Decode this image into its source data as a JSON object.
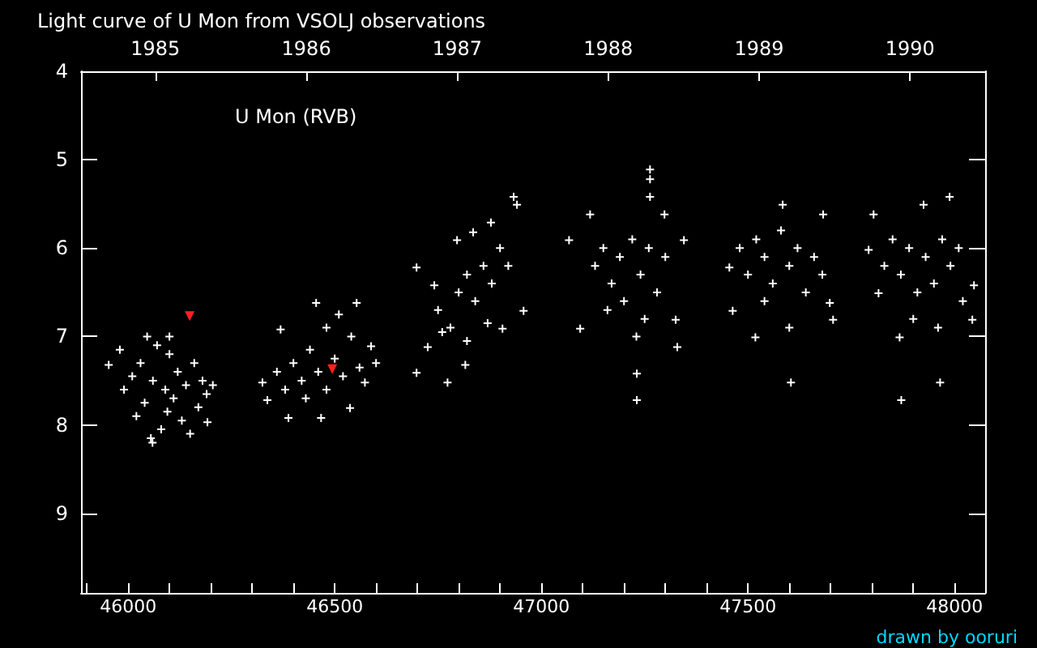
{
  "chart_data": {
    "type": "scatter",
    "title": "Light curve of U Mon from VSOLJ observations",
    "annotations": [
      "U Mon (RVB)",
      "drawn by ooruri"
    ],
    "xlim": [
      45886,
      48074
    ],
    "xticks": [
      {
        "value": 45900,
        "label": null
      },
      46000,
      {
        "value": 46100,
        "label": null
      },
      {
        "value": 46200,
        "label": null
      },
      {
        "value": 46300,
        "label": null
      },
      {
        "value": 46400,
        "label": null
      },
      46500,
      {
        "value": 46600,
        "label": null
      },
      {
        "value": 46700,
        "label": null
      },
      {
        "value": 46800,
        "label": null
      },
      {
        "value": 46900,
        "label": null
      },
      47000,
      {
        "value": 47100,
        "label": null
      },
      {
        "value": 47200,
        "label": null
      },
      {
        "value": 47300,
        "label": null
      },
      {
        "value": 47400,
        "label": null
      },
      47500,
      {
        "value": 47600,
        "label": null
      },
      {
        "value": 47700,
        "label": null
      },
      {
        "value": 47800,
        "label": null
      },
      {
        "value": 47900,
        "label": null
      },
      48000
    ],
    "x2lim": [
      1984.507,
      1990.498
    ],
    "x2ticks": [
      1985,
      1986,
      1987,
      1988,
      1989,
      1990
    ],
    "ylim": [
      9.9,
      4
    ],
    "yticks": [
      4,
      5,
      6,
      7,
      8,
      9
    ],
    "grid": false,
    "series": [
      {
        "color": "#ffffff",
        "marker": "cross",
        "x": [
          45953,
          45980,
          45990,
          46010,
          46020,
          46030,
          46040,
          46046,
          46055,
          46060,
          46070,
          46080,
          46090,
          46095,
          46100,
          46110,
          46120,
          46130,
          46140,
          46150,
          46160,
          46170,
          46180,
          46190,
          46205,
          46100,
          46059,
          46192,
          46325,
          46337,
          46369,
          46388,
          46455,
          46467,
          46553,
          46588,
          46573,
          46537,
          46400,
          46420,
          46440,
          46460,
          46480,
          46500,
          46520,
          46540,
          46560,
          46430,
          46480,
          46510,
          46360,
          46380,
          46600,
          46698,
          46698,
          46773,
          46725,
          46933,
          46941,
          46878,
          46835,
          46957,
          46906,
          46816,
          46741,
          46796,
          46750,
          46780,
          46800,
          46820,
          46840,
          46860,
          46880,
          46900,
          46920,
          46760,
          46820,
          46870,
          47263,
          47263,
          47263,
          47067,
          47345,
          47231,
          47094,
          47325,
          47118,
          47298,
          47231,
          47329,
          47130,
          47150,
          47170,
          47190,
          47200,
          47220,
          47240,
          47260,
          47280,
          47300,
          47160,
          47250,
          47230,
          47584,
          47463,
          47706,
          47604,
          47518,
          47698,
          47455,
          47682,
          47480,
          47500,
          47520,
          47540,
          47560,
          47580,
          47600,
          47620,
          47640,
          47660,
          47600,
          47540,
          47680,
          47792,
          47988,
          48047,
          48043,
          47871,
          47965,
          47816,
          47804,
          47925,
          47867,
          47830,
          47850,
          47870,
          47890,
          47910,
          47930,
          47950,
          47970,
          47990,
          48010,
          48020,
          47900,
          47960
        ],
        "values": [
          7.32,
          7.15,
          7.6,
          7.45,
          7.9,
          7.3,
          7.75,
          7.0,
          8.15,
          7.5,
          7.1,
          8.05,
          7.6,
          7.85,
          7.2,
          7.7,
          7.4,
          7.95,
          7.55,
          8.1,
          7.3,
          7.8,
          7.5,
          7.65,
          7.55,
          7.0,
          8.2,
          7.97,
          7.52,
          7.72,
          6.92,
          7.92,
          6.62,
          7.92,
          6.62,
          7.11,
          7.52,
          7.81,
          7.3,
          7.5,
          7.15,
          7.4,
          7.6,
          7.25,
          7.45,
          7.0,
          7.35,
          7.7,
          6.9,
          6.75,
          7.4,
          7.6,
          7.3,
          6.22,
          7.41,
          7.52,
          7.12,
          5.42,
          5.51,
          5.71,
          5.82,
          6.71,
          6.91,
          7.32,
          6.42,
          5.91,
          6.7,
          6.9,
          6.5,
          6.3,
          6.6,
          6.2,
          6.4,
          6.0,
          6.2,
          6.95,
          7.05,
          6.85,
          5.11,
          5.22,
          5.42,
          5.91,
          5.91,
          7.72,
          6.91,
          6.81,
          5.62,
          5.62,
          7.42,
          7.12,
          6.2,
          6.0,
          6.4,
          6.1,
          6.6,
          5.9,
          6.3,
          6.0,
          6.5,
          6.1,
          6.7,
          6.8,
          7.0,
          5.51,
          6.71,
          6.81,
          7.52,
          7.01,
          6.62,
          6.22,
          5.62,
          6.0,
          6.3,
          5.9,
          6.1,
          6.4,
          5.8,
          6.2,
          6.0,
          6.5,
          6.1,
          6.9,
          6.6,
          6.3,
          6.02,
          5.42,
          6.42,
          6.81,
          7.72,
          7.52,
          6.51,
          5.62,
          5.51,
          7.01,
          6.2,
          5.9,
          6.3,
          6.0,
          6.5,
          6.1,
          6.4,
          5.9,
          6.2,
          6.0,
          6.6,
          6.8,
          6.9
        ]
      },
      {
        "color": "#ff2020",
        "marker": "triangle",
        "x": [
          46149,
          46494
        ],
        "values": [
          6.77,
          7.37
        ]
      }
    ]
  }
}
